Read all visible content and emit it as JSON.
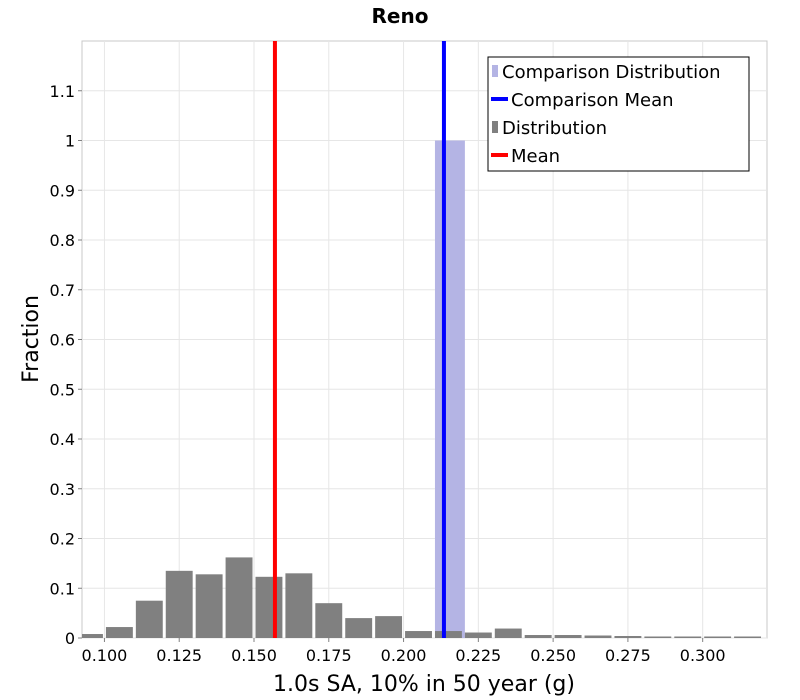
{
  "chart_data": {
    "type": "bar",
    "title": "Reno",
    "xlabel": "1.0s SA, 10% in 50 year (g)",
    "ylabel": "Fraction",
    "xlim": [
      0.0925,
      0.3215
    ],
    "ylim": [
      0,
      1.2
    ],
    "xticks": [
      0.1,
      0.125,
      0.15,
      0.175,
      0.2,
      0.225,
      0.25,
      0.275,
      0.3
    ],
    "xtick_labels": [
      "0.100",
      "0.125",
      "0.150",
      "0.175",
      "0.200",
      "0.225",
      "0.250",
      "0.275",
      "0.300"
    ],
    "yticks": [
      0,
      0.1,
      0.2,
      0.3,
      0.4,
      0.5,
      0.6,
      0.7,
      0.8,
      0.9,
      1,
      1.1
    ],
    "ytick_labels": [
      "0",
      "0.1",
      "0.2",
      "0.3",
      "0.4",
      "0.5",
      "0.6",
      "0.7",
      "0.8",
      "0.9",
      "1",
      "1.1"
    ],
    "grid": true,
    "legend_position": "top-right",
    "bin_width": 0.01,
    "distribution": {
      "name": "Distribution",
      "color": "#808080",
      "bin_centers": [
        0.095,
        0.105,
        0.115,
        0.125,
        0.135,
        0.145,
        0.155,
        0.165,
        0.175,
        0.185,
        0.195,
        0.205,
        0.215,
        0.225,
        0.235,
        0.245,
        0.255,
        0.265,
        0.275,
        0.285,
        0.295,
        0.305,
        0.315
      ],
      "values": [
        0.008,
        0.022,
        0.075,
        0.135,
        0.128,
        0.162,
        0.123,
        0.13,
        0.07,
        0.04,
        0.044,
        0.014,
        0.014,
        0.011,
        0.019,
        0.006,
        0.006,
        0.005,
        0.004,
        0.003,
        0.003,
        0.003,
        0.003
      ]
    },
    "comparison_distribution": {
      "name": "Comparison Distribution",
      "color": "#b4b4e4",
      "bin_centers": [
        0.2155
      ],
      "values": [
        1.0
      ]
    },
    "mean": {
      "name": "Mean",
      "color": "#ff0000",
      "value": 0.157
    },
    "comparison_mean": {
      "name": "Comparison Mean",
      "color": "#0000ff",
      "value": 0.2135
    },
    "legend": [
      "Comparison Distribution",
      "Comparison Mean",
      "Distribution",
      "Mean"
    ]
  }
}
